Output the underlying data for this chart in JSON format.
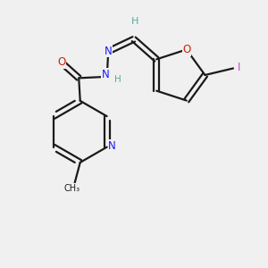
{
  "background_color": "#f0f0f0",
  "bond_color": "#1a1a1a",
  "atom_colors": {
    "N": "#1a1aff",
    "O": "#cc2200",
    "I": "#cc44cc",
    "C": "#1a1a1a",
    "H": "#5ba89b"
  },
  "figsize": [
    3.0,
    3.0
  ],
  "dpi": 100
}
